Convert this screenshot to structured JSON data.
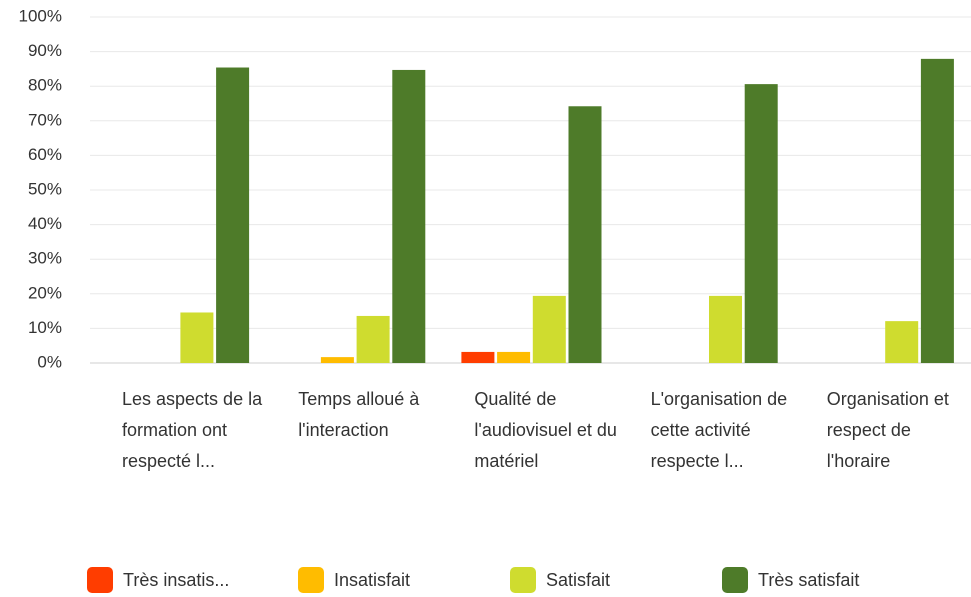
{
  "chart_data": {
    "type": "bar",
    "categories": [
      "Les aspects de la formation ont respecté l...",
      "Temps alloué à l'interaction",
      "Qualité de l'audiovisuel et du matériel",
      "L'organisation de cette activité respecte l...",
      "Organisation et respect de l'horaire"
    ],
    "series": [
      {
        "name": "Très insatis...",
        "color": "#ff3d00",
        "values": [
          0,
          0,
          3.2,
          0,
          0
        ]
      },
      {
        "name": "Insatisfait",
        "color": "#ffbc00",
        "values": [
          0,
          1.7,
          3.2,
          0,
          0
        ]
      },
      {
        "name": "Satisfait",
        "color": "#cfdc2f",
        "values": [
          14.6,
          13.6,
          19.4,
          19.4,
          12.1
        ]
      },
      {
        "name": "Très satisfait",
        "color": "#4e7b29",
        "values": [
          85.4,
          84.7,
          74.2,
          80.6,
          87.9
        ]
      }
    ],
    "ylim": [
      0,
      100
    ],
    "yticks": [
      {
        "value": 0,
        "label": "0%"
      },
      {
        "value": 10,
        "label": "10%"
      },
      {
        "value": 20,
        "label": "20%"
      },
      {
        "value": 30,
        "label": "30%"
      },
      {
        "value": 40,
        "label": "40%"
      },
      {
        "value": 50,
        "label": "50%"
      },
      {
        "value": 60,
        "label": "60%"
      },
      {
        "value": 70,
        "label": "70%"
      },
      {
        "value": 80,
        "label": "80%"
      },
      {
        "value": 90,
        "label": "90%"
      },
      {
        "value": 100,
        "label": "100%"
      }
    ],
    "grid": true
  }
}
